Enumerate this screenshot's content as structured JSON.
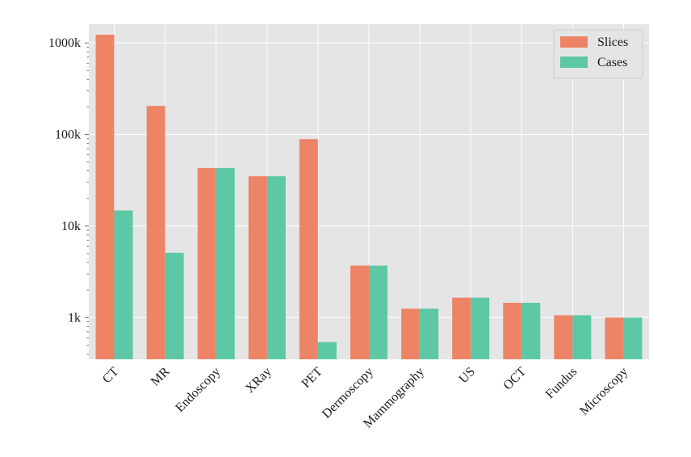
{
  "colors": {
    "plot_background": "#e5e5e5",
    "grid": "#ffffff",
    "slices": "#ee8466",
    "cases": "#5dc8a5",
    "text": "#1a1a1a"
  },
  "chart_data": {
    "type": "bar",
    "title": "",
    "xlabel": "",
    "ylabel": "",
    "yscale": "log",
    "ylim": [
      350,
      1600000
    ],
    "grid": true,
    "legend_position": "top-right",
    "categories": [
      "CT",
      "MR",
      "Endoscopy",
      "XRay",
      "PET",
      "Dermoscopy",
      "Mammography",
      "US",
      "OCT",
      "Fundus",
      "Microscopy"
    ],
    "series": [
      {
        "name": "Slices",
        "values": [
          1230000,
          205000,
          43000,
          35000,
          89000,
          3700,
          1250,
          1650,
          1450,
          1060,
          1000
        ]
      },
      {
        "name": "Cases",
        "values": [
          14800,
          5100,
          43000,
          35000,
          540,
          3700,
          1250,
          1650,
          1450,
          1060,
          1000
        ]
      }
    ],
    "y_ticks": [
      {
        "value": 1000,
        "label": "1k"
      },
      {
        "value": 10000,
        "label": "10k"
      },
      {
        "value": 100000,
        "label": "100k"
      },
      {
        "value": 1000000,
        "label": "1000k"
      }
    ]
  }
}
